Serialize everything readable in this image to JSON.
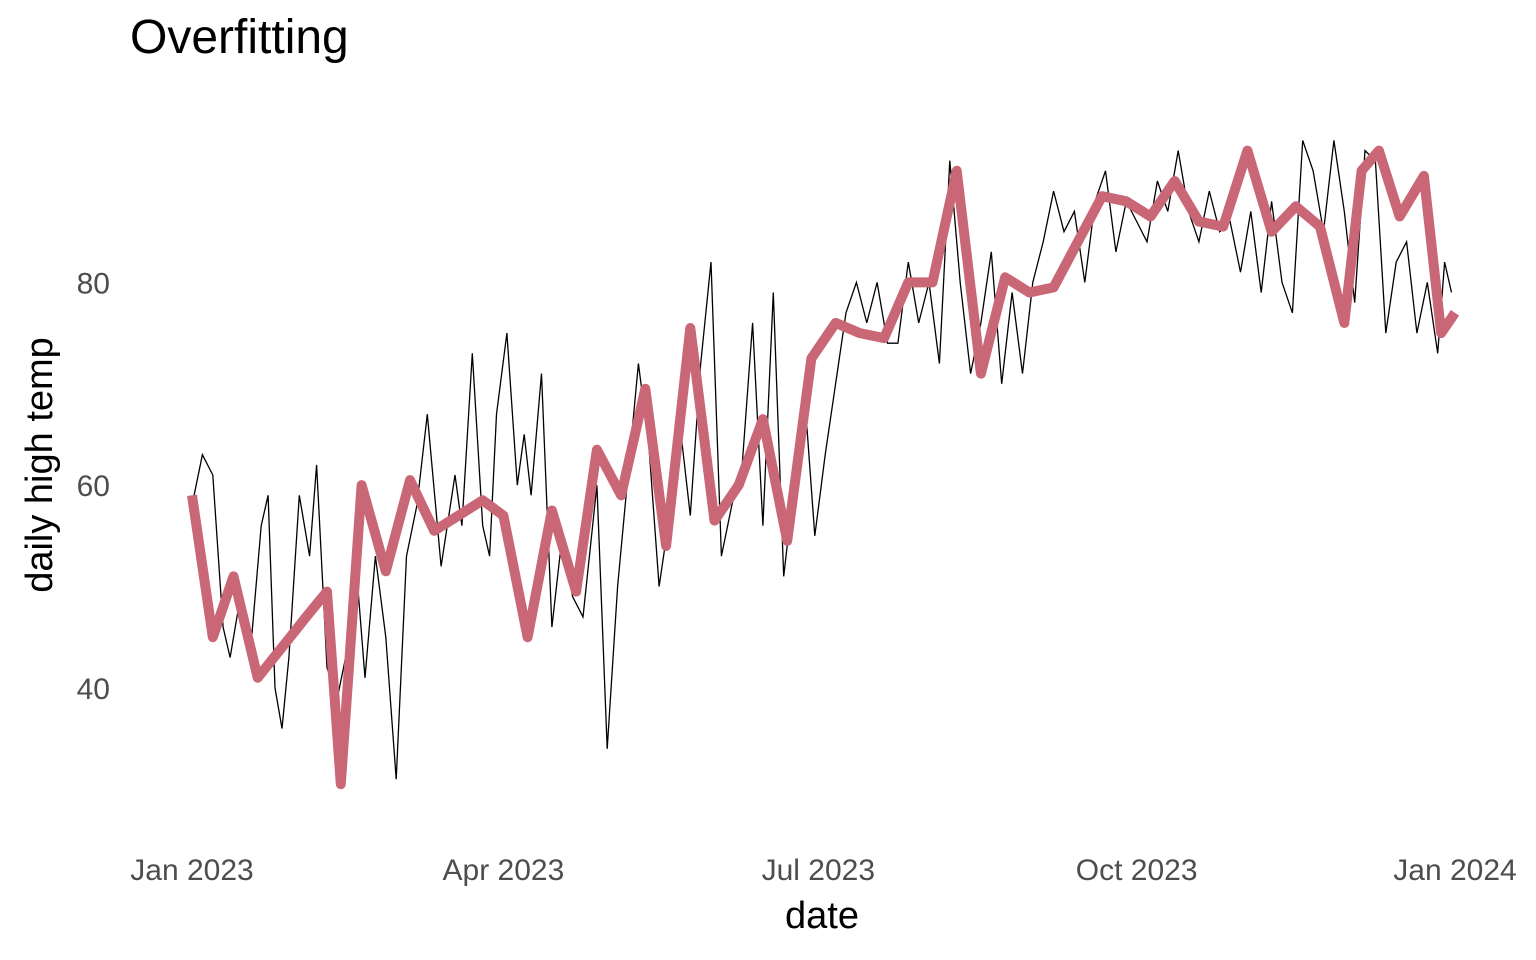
{
  "chart_data": {
    "type": "line",
    "title": "Overfitting",
    "xlabel": "date",
    "ylabel": "daily high temp",
    "x_axis": {
      "ticks": [
        "2023-01-01",
        "2023-04-01",
        "2023-07-01",
        "2023-10-01",
        "2024-01-01"
      ],
      "tick_labels": [
        "Jan 2023",
        "Apr 2023",
        "Jul 2023",
        "Oct 2023",
        "Jan 2024"
      ]
    },
    "y_axis": {
      "ticks": [
        40,
        60,
        80
      ],
      "ylim": [
        25,
        97
      ]
    },
    "grid": false,
    "series": [
      {
        "role": "daily observations",
        "color": "#000000",
        "points": [
          [
            "2023-01-01",
            58
          ],
          [
            "2023-01-04",
            63
          ],
          [
            "2023-01-07",
            61
          ],
          [
            "2023-01-10",
            46
          ],
          [
            "2023-01-12",
            43
          ],
          [
            "2023-01-15",
            49
          ],
          [
            "2023-01-18",
            44
          ],
          [
            "2023-01-21",
            56
          ],
          [
            "2023-01-23",
            59
          ],
          [
            "2023-01-25",
            40
          ],
          [
            "2023-01-27",
            36
          ],
          [
            "2023-01-29",
            43
          ],
          [
            "2023-02-01",
            59
          ],
          [
            "2023-02-04",
            53
          ],
          [
            "2023-02-06",
            62
          ],
          [
            "2023-02-09",
            42
          ],
          [
            "2023-02-12",
            39
          ],
          [
            "2023-02-15",
            44
          ],
          [
            "2023-02-17",
            54
          ],
          [
            "2023-02-20",
            41
          ],
          [
            "2023-02-23",
            53
          ],
          [
            "2023-02-26",
            45
          ],
          [
            "2023-03-01",
            31
          ],
          [
            "2023-03-04",
            53
          ],
          [
            "2023-03-07",
            58
          ],
          [
            "2023-03-10",
            67
          ],
          [
            "2023-03-14",
            52
          ],
          [
            "2023-03-18",
            61
          ],
          [
            "2023-03-20",
            56
          ],
          [
            "2023-03-23",
            73
          ],
          [
            "2023-03-26",
            56
          ],
          [
            "2023-03-28",
            53
          ],
          [
            "2023-03-30",
            67
          ],
          [
            "2023-04-02",
            75
          ],
          [
            "2023-04-05",
            60
          ],
          [
            "2023-04-07",
            65
          ],
          [
            "2023-04-09",
            59
          ],
          [
            "2023-04-12",
            71
          ],
          [
            "2023-04-15",
            46
          ],
          [
            "2023-04-18",
            55
          ],
          [
            "2023-04-21",
            49
          ],
          [
            "2023-04-24",
            47
          ],
          [
            "2023-04-28",
            60
          ],
          [
            "2023-05-01",
            34
          ],
          [
            "2023-05-04",
            50
          ],
          [
            "2023-05-07",
            61
          ],
          [
            "2023-05-10",
            72
          ],
          [
            "2023-05-13",
            64
          ],
          [
            "2023-05-16",
            50
          ],
          [
            "2023-05-19",
            57
          ],
          [
            "2023-05-22",
            66
          ],
          [
            "2023-05-25",
            57
          ],
          [
            "2023-05-28",
            72
          ],
          [
            "2023-05-31",
            82
          ],
          [
            "2023-06-03",
            53
          ],
          [
            "2023-06-06",
            58
          ],
          [
            "2023-06-09",
            62
          ],
          [
            "2023-06-12",
            76
          ],
          [
            "2023-06-15",
            56
          ],
          [
            "2023-06-18",
            79
          ],
          [
            "2023-06-21",
            51
          ],
          [
            "2023-06-24",
            60
          ],
          [
            "2023-06-27",
            69
          ],
          [
            "2023-06-30",
            55
          ],
          [
            "2023-07-03",
            63
          ],
          [
            "2023-07-06",
            70
          ],
          [
            "2023-07-09",
            77
          ],
          [
            "2023-07-12",
            80
          ],
          [
            "2023-07-15",
            76
          ],
          [
            "2023-07-18",
            80
          ],
          [
            "2023-07-21",
            74
          ],
          [
            "2023-07-24",
            74
          ],
          [
            "2023-07-27",
            82
          ],
          [
            "2023-07-30",
            76
          ],
          [
            "2023-08-02",
            80
          ],
          [
            "2023-08-05",
            72
          ],
          [
            "2023-08-08",
            92
          ],
          [
            "2023-08-11",
            80
          ],
          [
            "2023-08-14",
            71
          ],
          [
            "2023-08-17",
            76
          ],
          [
            "2023-08-20",
            83
          ],
          [
            "2023-08-23",
            70
          ],
          [
            "2023-08-26",
            79
          ],
          [
            "2023-08-29",
            71
          ],
          [
            "2023-09-01",
            80
          ],
          [
            "2023-09-04",
            84
          ],
          [
            "2023-09-07",
            89
          ],
          [
            "2023-09-10",
            85
          ],
          [
            "2023-09-13",
            87
          ],
          [
            "2023-09-16",
            80
          ],
          [
            "2023-09-19",
            88
          ],
          [
            "2023-09-22",
            91
          ],
          [
            "2023-09-25",
            83
          ],
          [
            "2023-09-28",
            88
          ],
          [
            "2023-10-01",
            86
          ],
          [
            "2023-10-04",
            84
          ],
          [
            "2023-10-07",
            90
          ],
          [
            "2023-10-10",
            87
          ],
          [
            "2023-10-13",
            93
          ],
          [
            "2023-10-16",
            87
          ],
          [
            "2023-10-19",
            84
          ],
          [
            "2023-10-22",
            89
          ],
          [
            "2023-10-25",
            85
          ],
          [
            "2023-10-28",
            86
          ],
          [
            "2023-10-31",
            81
          ],
          [
            "2023-11-03",
            87
          ],
          [
            "2023-11-06",
            79
          ],
          [
            "2023-11-09",
            88
          ],
          [
            "2023-11-12",
            80
          ],
          [
            "2023-11-15",
            77
          ],
          [
            "2023-11-18",
            94
          ],
          [
            "2023-11-21",
            91
          ],
          [
            "2023-11-24",
            85
          ],
          [
            "2023-11-27",
            94
          ],
          [
            "2023-11-30",
            87
          ],
          [
            "2023-12-03",
            78
          ],
          [
            "2023-12-06",
            93
          ],
          [
            "2023-12-09",
            92
          ],
          [
            "2023-12-12",
            75
          ],
          [
            "2023-12-15",
            82
          ],
          [
            "2023-12-18",
            84
          ],
          [
            "2023-12-21",
            75
          ],
          [
            "2023-12-24",
            80
          ],
          [
            "2023-12-27",
            73
          ],
          [
            "2023-12-29",
            82
          ],
          [
            "2023-12-31",
            79
          ]
        ]
      },
      {
        "role": "overfit model",
        "color": "#c96776",
        "points": [
          [
            "2023-01-01",
            59
          ],
          [
            "2023-01-07",
            45
          ],
          [
            "2023-01-13",
            51
          ],
          [
            "2023-01-20",
            41
          ],
          [
            "2023-01-27",
            44
          ],
          [
            "2023-02-03",
            47
          ],
          [
            "2023-02-09",
            49.5
          ],
          [
            "2023-02-13",
            30.5
          ],
          [
            "2023-02-19",
            60
          ],
          [
            "2023-02-26",
            51.5
          ],
          [
            "2023-03-05",
            60.5
          ],
          [
            "2023-03-12",
            55.5
          ],
          [
            "2023-03-19",
            57
          ],
          [
            "2023-03-26",
            58.5
          ],
          [
            "2023-04-01",
            57
          ],
          [
            "2023-04-08",
            45
          ],
          [
            "2023-04-15",
            57.5
          ],
          [
            "2023-04-22",
            49.5
          ],
          [
            "2023-04-28",
            63.5
          ],
          [
            "2023-05-05",
            59
          ],
          [
            "2023-05-12",
            69.5
          ],
          [
            "2023-05-18",
            54
          ],
          [
            "2023-05-25",
            75.5
          ],
          [
            "2023-06-01",
            56.5
          ],
          [
            "2023-06-08",
            60
          ],
          [
            "2023-06-15",
            66.5
          ],
          [
            "2023-06-22",
            54.5
          ],
          [
            "2023-06-29",
            72.5
          ],
          [
            "2023-07-06",
            76
          ],
          [
            "2023-07-13",
            75
          ],
          [
            "2023-07-20",
            74.5
          ],
          [
            "2023-07-27",
            80
          ],
          [
            "2023-08-03",
            80
          ],
          [
            "2023-08-10",
            91
          ],
          [
            "2023-08-17",
            71
          ],
          [
            "2023-08-24",
            80.5
          ],
          [
            "2023-08-31",
            79
          ],
          [
            "2023-09-07",
            79.5
          ],
          [
            "2023-09-14",
            84
          ],
          [
            "2023-09-21",
            88.5
          ],
          [
            "2023-09-28",
            88
          ],
          [
            "2023-10-05",
            86.5
          ],
          [
            "2023-10-12",
            90
          ],
          [
            "2023-10-19",
            86
          ],
          [
            "2023-10-26",
            85.5
          ],
          [
            "2023-11-02",
            93
          ],
          [
            "2023-11-09",
            85
          ],
          [
            "2023-11-16",
            87.5
          ],
          [
            "2023-11-23",
            85.5
          ],
          [
            "2023-11-30",
            76
          ],
          [
            "2023-12-05",
            91
          ],
          [
            "2023-12-10",
            93
          ],
          [
            "2023-12-16",
            86.5
          ],
          [
            "2023-12-23",
            90.5
          ],
          [
            "2023-12-28",
            75
          ],
          [
            "2024-01-01",
            77
          ]
        ]
      }
    ]
  }
}
